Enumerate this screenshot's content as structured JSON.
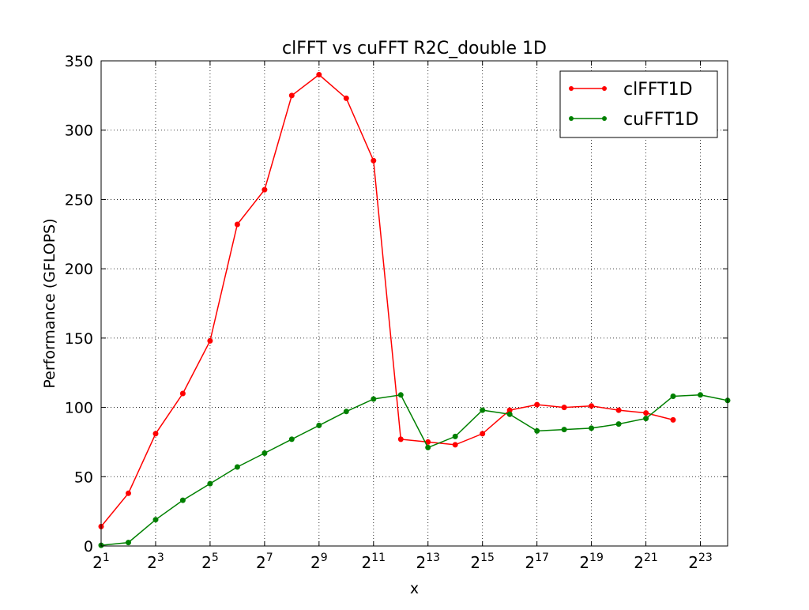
{
  "chart_data": {
    "type": "line",
    "title": "clFFT vs cuFFT R2C_double 1D",
    "xlabel": "x",
    "ylabel": "Performance (GFLOPS)",
    "x_scale": "log2",
    "xlim": [
      2,
      16777216
    ],
    "ylim": [
      0,
      350
    ],
    "x_ticks": [
      {
        "value": 2,
        "base": "2",
        "exp": "1"
      },
      {
        "value": 8,
        "base": "2",
        "exp": "3"
      },
      {
        "value": 32,
        "base": "2",
        "exp": "5"
      },
      {
        "value": 128,
        "base": "2",
        "exp": "7"
      },
      {
        "value": 512,
        "base": "2",
        "exp": "9"
      },
      {
        "value": 2048,
        "base": "2",
        "exp": "11"
      },
      {
        "value": 8192,
        "base": "2",
        "exp": "13"
      },
      {
        "value": 32768,
        "base": "2",
        "exp": "15"
      },
      {
        "value": 131072,
        "base": "2",
        "exp": "17"
      },
      {
        "value": 524288,
        "base": "2",
        "exp": "19"
      },
      {
        "value": 2097152,
        "base": "2",
        "exp": "21"
      },
      {
        "value": 8388608,
        "base": "2",
        "exp": "23"
      }
    ],
    "y_ticks": [
      0,
      50,
      100,
      150,
      200,
      250,
      300,
      350
    ],
    "grid": true,
    "legend_position": "top-right",
    "series": [
      {
        "name": "clFFT1D",
        "color": "#ff0000",
        "x": [
          2,
          4,
          8,
          16,
          32,
          64,
          128,
          256,
          512,
          1024,
          2048,
          4096,
          8192,
          16384,
          32768,
          65536,
          131072,
          262144,
          524288,
          1048576,
          2097152,
          4194304
        ],
        "values": [
          14,
          38,
          81,
          110,
          148,
          232,
          257,
          325,
          340,
          323,
          278,
          77,
          75,
          73,
          81,
          98,
          102,
          100,
          101,
          98,
          96,
          91
        ]
      },
      {
        "name": "cuFFT1D",
        "color": "#008000",
        "x": [
          2,
          4,
          8,
          16,
          32,
          64,
          128,
          256,
          512,
          1024,
          2048,
          4096,
          8192,
          16384,
          32768,
          65536,
          131072,
          262144,
          524288,
          1048576,
          2097152,
          4194304,
          8388608,
          16777216
        ],
        "values": [
          0.5,
          2.5,
          19,
          33,
          45,
          57,
          67,
          77,
          87,
          97,
          106,
          109,
          71,
          79,
          98,
          95,
          83,
          84,
          85,
          88,
          92,
          108,
          109,
          105
        ]
      }
    ]
  }
}
